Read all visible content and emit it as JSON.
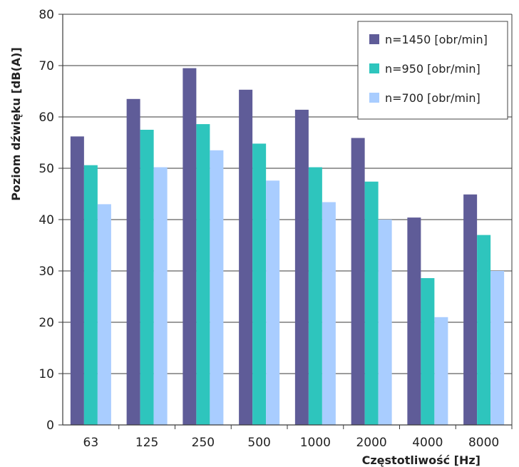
{
  "chart_data": {
    "type": "bar",
    "title": "",
    "xlabel": "Częstotliwość [Hz]",
    "ylabel": "Poziom dźwięku [dB(A)]",
    "categories": [
      "63",
      "125",
      "250",
      "500",
      "1000",
      "2000",
      "4000",
      "8000"
    ],
    "ylim": [
      0,
      80
    ],
    "yticks": [
      "0",
      "10",
      "20",
      "30",
      "40",
      "50",
      "60",
      "70",
      "80"
    ],
    "grid": "horizontal",
    "legend_position": "top-right",
    "series": [
      {
        "name": "n=1450 [obr/min]",
        "color": "#5f5c98",
        "values": [
          56.2,
          63.5,
          69.5,
          65.3,
          61.4,
          55.9,
          40.4,
          44.9
        ]
      },
      {
        "name": "n=950 [obr/min]",
        "color": "#2ec5bd",
        "values": [
          50.6,
          57.5,
          58.6,
          54.8,
          50.2,
          47.4,
          28.6,
          37.0
        ]
      },
      {
        "name": "n=700 [obr/min]",
        "color": "#a9cdff",
        "values": [
          43.0,
          50.2,
          53.5,
          47.6,
          43.4,
          40.0,
          21.0,
          30.0
        ]
      }
    ]
  }
}
